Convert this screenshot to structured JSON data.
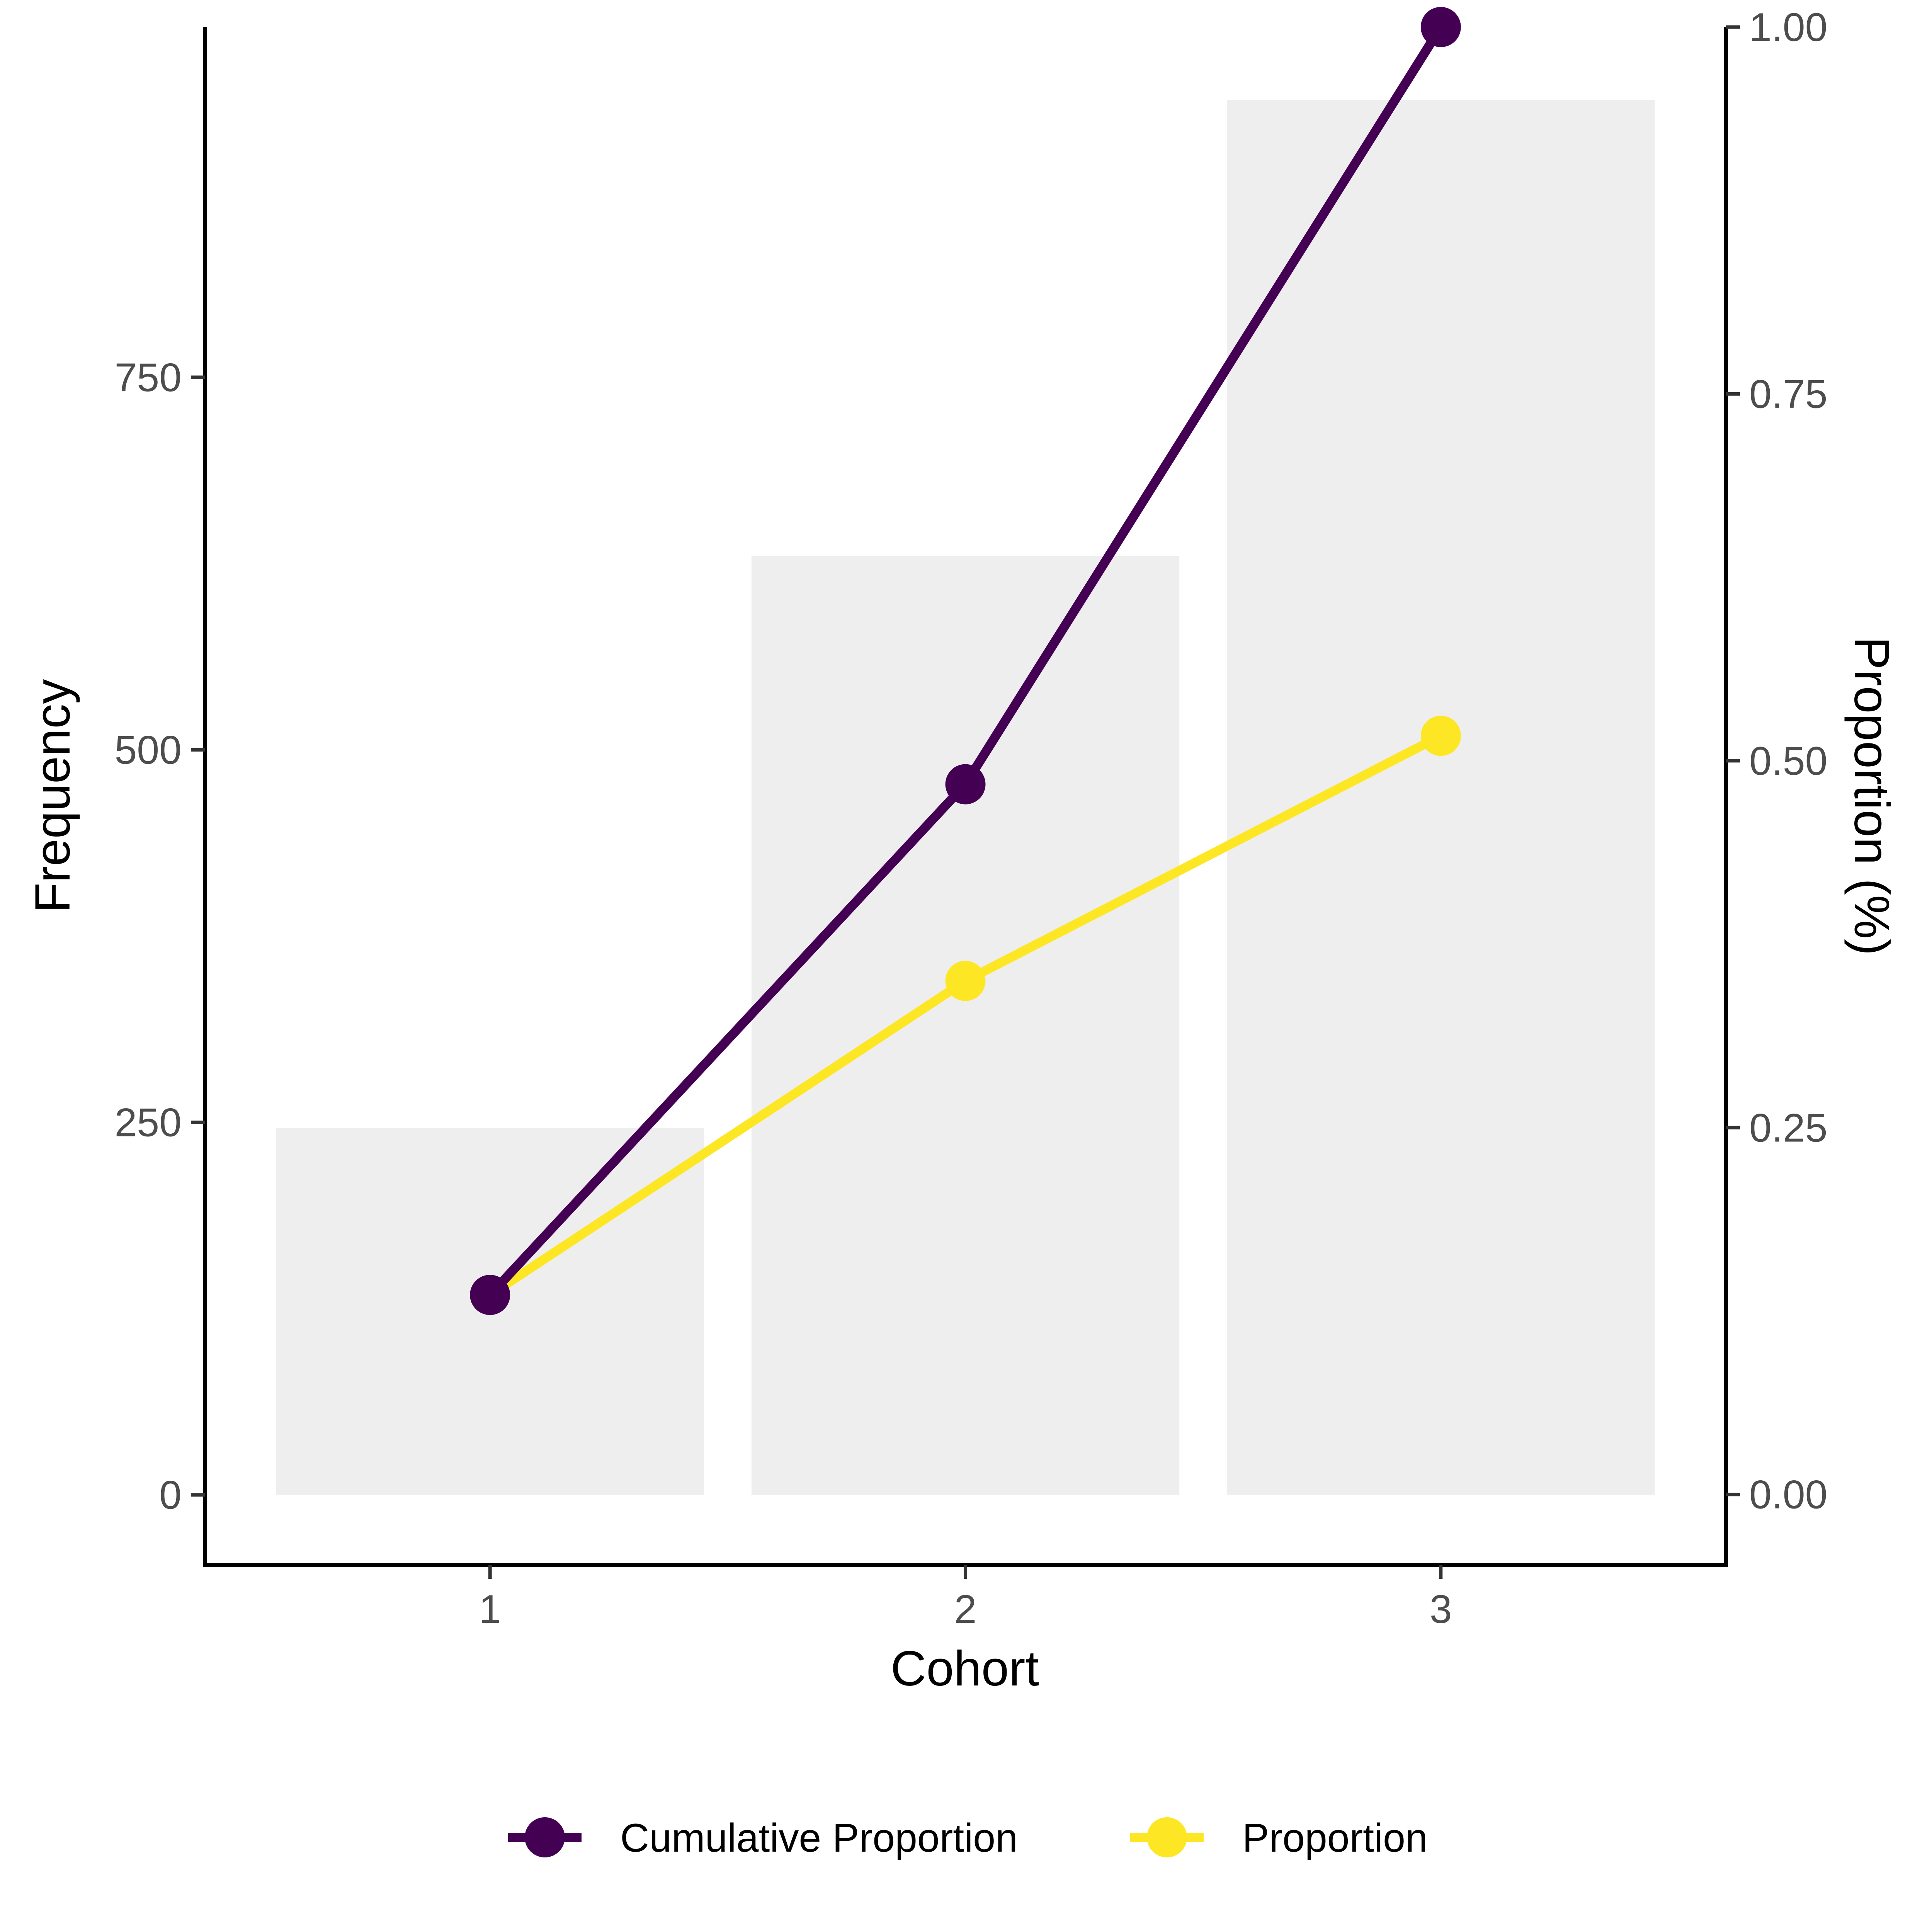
{
  "chart_data": {
    "type": "bar",
    "categories": [
      "1",
      "2",
      "3"
    ],
    "xlabel": "Cohort",
    "ylabel": "Frequency",
    "y2label": "Proportion (%)",
    "y_ticks": [
      "0",
      "250",
      "500",
      "750"
    ],
    "y_tick_values": [
      0,
      250,
      500,
      750
    ],
    "y2_ticks": [
      "0.00",
      "0.25",
      "0.50",
      "0.75",
      "1.00"
    ],
    "y2_tick_values": [
      0,
      0.25,
      0.5,
      0.75,
      1.0
    ],
    "ylim": [
      -47,
      985
    ],
    "y2lim": [
      -0.048,
      1.0
    ],
    "bars": {
      "axis": "left",
      "color": "#eeeeee",
      "values": [
        246,
        630,
        936
      ]
    },
    "series": [
      {
        "name": "Cumulative Proportion",
        "axis": "right",
        "color": "#440154",
        "values": [
          0.136,
          0.484,
          1.0
        ]
      },
      {
        "name": "Proportion",
        "axis": "right",
        "color": "#fde725",
        "values": [
          0.136,
          0.35,
          0.517
        ]
      }
    ],
    "grid": false,
    "legend_position": "bottom"
  }
}
